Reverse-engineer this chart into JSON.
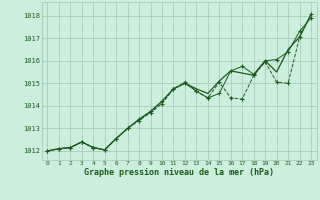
{
  "bg_color": "#cceedd",
  "grid_color": "#aaccbb",
  "line_color": "#1a5c1a",
  "text_color": "#1a5c1a",
  "xlabel": "Graphe pression niveau de la mer (hPa)",
  "xlim": [
    -0.5,
    23.5
  ],
  "ylim": [
    1011.6,
    1018.6
  ],
  "yticks": [
    1012,
    1013,
    1014,
    1015,
    1016,
    1017,
    1018
  ],
  "xticks": [
    0,
    1,
    2,
    3,
    4,
    5,
    6,
    7,
    8,
    9,
    10,
    11,
    12,
    13,
    14,
    15,
    16,
    17,
    18,
    19,
    20,
    21,
    22,
    23
  ],
  "series_smooth": [
    1012.0,
    1012.1,
    1012.15,
    1012.4,
    1012.15,
    1012.05,
    1012.55,
    1013.0,
    1013.4,
    1013.75,
    1014.2,
    1014.75,
    1015.0,
    1014.75,
    1014.55,
    1015.1,
    1015.55,
    1015.45,
    1015.35,
    1016.0,
    1015.5,
    1016.5,
    1017.05,
    1018.05
  ],
  "series_upper": [
    1012.0,
    1012.1,
    1012.15,
    1012.4,
    1012.15,
    1012.05,
    1012.55,
    1013.0,
    1013.4,
    1013.75,
    1014.2,
    1014.75,
    1015.0,
    1014.65,
    1014.35,
    1014.55,
    1015.55,
    1015.75,
    1015.4,
    1016.0,
    1016.05,
    1016.4,
    1017.3,
    1017.9
  ],
  "series_lower": [
    1012.0,
    1012.1,
    1012.15,
    1012.4,
    1012.15,
    1012.05,
    1012.55,
    1013.0,
    1013.35,
    1013.7,
    1014.1,
    1014.75,
    1015.05,
    1014.65,
    1014.35,
    1015.05,
    1014.35,
    1014.3,
    1015.35,
    1015.95,
    1015.05,
    1015.0,
    1017.05,
    1018.05
  ]
}
